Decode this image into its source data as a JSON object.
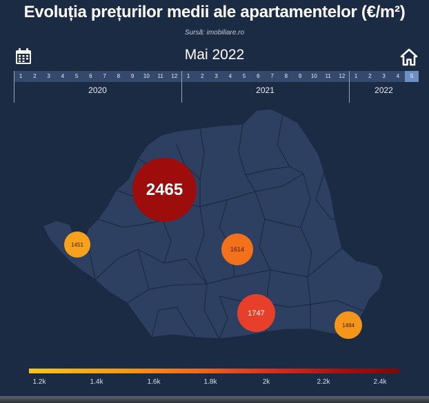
{
  "title": "Evoluția prețurilor medii ale apartamentelor (€/m²)",
  "source": "Sursă: imobiliare.ro",
  "current_date": "Mai 2022",
  "icons": {
    "calendar": "calendar-icon",
    "home": "home-icon"
  },
  "timeline": {
    "years": [
      {
        "label": "2020",
        "months": [
          "1",
          "2",
          "3",
          "4",
          "5",
          "6",
          "7",
          "8",
          "9",
          "10",
          "11",
          "12"
        ]
      },
      {
        "label": "2021",
        "months": [
          "1",
          "2",
          "3",
          "4",
          "5",
          "6",
          "7",
          "8",
          "9",
          "10",
          "11",
          "12"
        ]
      },
      {
        "label": "2022",
        "months": [
          "1",
          "2",
          "3",
          "4",
          "5"
        ]
      }
    ],
    "active": {
      "year": "2022",
      "month": "5"
    }
  },
  "bubbles": [
    {
      "value": "2465",
      "color": "#9c0d0b"
    },
    {
      "value": "1451",
      "color": "#f6a21a"
    },
    {
      "value": "1614",
      "color": "#f4711c"
    },
    {
      "value": "1747",
      "color": "#e6402a"
    },
    {
      "value": "1484",
      "color": "#f5961a"
    }
  ],
  "legend": {
    "labels": [
      "1.2k",
      "1.4k",
      "1.6k",
      "1.8k",
      "2k",
      "2.2k",
      "2.4k"
    ],
    "colors": [
      "#f7c51e",
      "#f59a16",
      "#ee6b1d",
      "#d8311f",
      "#a60f10",
      "#7e0808"
    ]
  },
  "colors": {
    "background": "#1c2b44",
    "map_fill": "#2d4061",
    "map_border": "#1b2a42"
  }
}
